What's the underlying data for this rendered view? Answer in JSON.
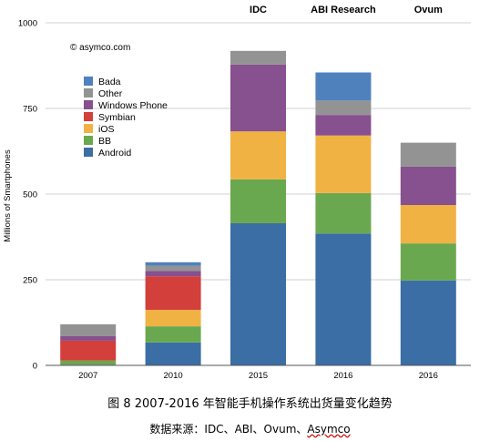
{
  "chart_data": {
    "type": "bar",
    "stacked": true,
    "title": "",
    "xlabel": "",
    "ylabel": "Millions of Smartphones",
    "ylim": [
      0,
      1000
    ],
    "yticks": [
      0,
      250,
      500,
      750,
      1000
    ],
    "watermark": "© asymco.com",
    "categories": [
      "2007",
      "2010",
      "2015",
      "2016",
      "2016"
    ],
    "group_labels": [
      "",
      "",
      "IDC",
      "ABI Research",
      "Ovum"
    ],
    "series": [
      {
        "name": "Android",
        "color": "#3a6ea5",
        "values": [
          2,
          67,
          415,
          385,
          248
        ]
      },
      {
        "name": "BB",
        "color": "#6aa84f",
        "values": [
          12,
          47,
          128,
          118,
          108
        ]
      },
      {
        "name": "iOS",
        "color": "#f1b244",
        "values": [
          0,
          48,
          140,
          168,
          112
        ]
      },
      {
        "name": "Symbian",
        "color": "#d33f3a",
        "values": [
          58,
          98,
          0,
          0,
          0
        ]
      },
      {
        "name": "Windows Phone",
        "color": "#87508e",
        "values": [
          14,
          16,
          195,
          60,
          112
        ]
      },
      {
        "name": "Other",
        "color": "#939393",
        "values": [
          34,
          15,
          40,
          42,
          70
        ]
      },
      {
        "name": "Bada",
        "color": "#4f81bd",
        "values": [
          0,
          10,
          0,
          82,
          0
        ]
      }
    ],
    "legend_position": "top-left",
    "legend_order": [
      "Bada",
      "Other",
      "Windows Phone",
      "Symbian",
      "iOS",
      "BB",
      "Android"
    ]
  },
  "caption": "图  8 2007-2016 年智能手机操作系统出货量变化趋势",
  "source": {
    "prefix": "数据来源：IDC、ABI、Ovum、",
    "underlined": "Asymco"
  }
}
